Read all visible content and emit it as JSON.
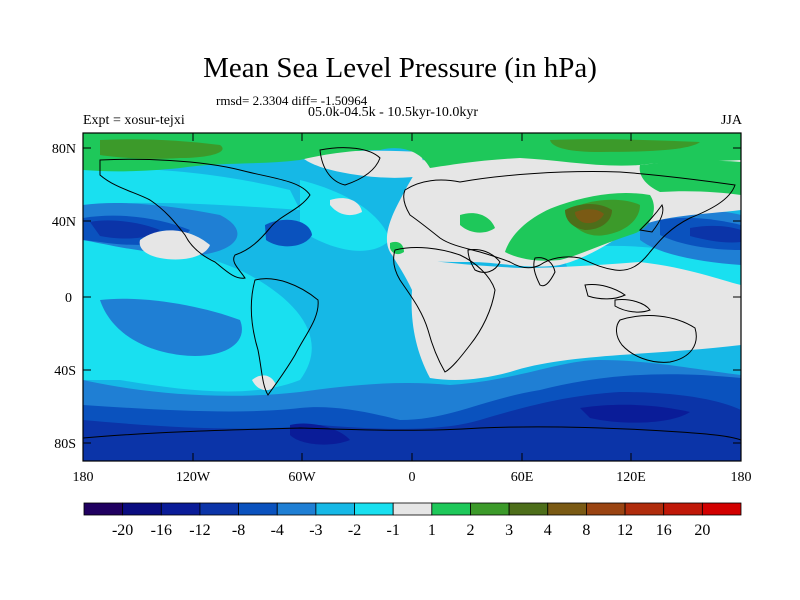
{
  "header": {
    "title": "Mean Sea Level Pressure (in hPa)",
    "stats": "rmsd= 2.3304 diff= -1.50964",
    "period": "05.0k-04.5k - 10.5kyr-10.0kyr",
    "experiment": "Expt = xosur-tejxi",
    "season": "JJA"
  },
  "map": {
    "lat_labels": [
      "80N",
      "40N",
      "0",
      "40S",
      "80S"
    ],
    "lon_labels": [
      "180",
      "120W",
      "60W",
      "0",
      "60E",
      "120E",
      "180"
    ]
  },
  "colorbar": {
    "labels": [
      "-20",
      "-16",
      "-12",
      "-8",
      "-4",
      "-3",
      "-2",
      "-1",
      "1",
      "2",
      "3",
      "4",
      "8",
      "12",
      "16",
      "20"
    ],
    "colors": [
      "#200060",
      "#0a0c80",
      "#0a1c98",
      "#0b34a8",
      "#0a52be",
      "#1f7fd4",
      "#16b8e6",
      "#19e0f0",
      "#e6e6e6",
      "#1ec85a",
      "#3c9a2a",
      "#4d6e1a",
      "#7a5a14",
      "#9a4412",
      "#b02c0c",
      "#c01808",
      "#d20000"
    ]
  },
  "chart_data": {
    "type": "heatmap",
    "title": "Mean Sea Level Pressure (in hPa)",
    "projection": "cylindrical equidistant",
    "variable": "MSLP difference (hPa)",
    "x_range": [
      -180,
      180
    ],
    "y_range": [
      -90,
      90
    ],
    "x_ticks": [
      -180,
      -120,
      -60,
      0,
      60,
      120,
      180
    ],
    "y_ticks": [
      80,
      40,
      0,
      -40,
      -80
    ],
    "contour_levels": [
      -20,
      -16,
      -12,
      -8,
      -4,
      -3,
      -2,
      -1,
      1,
      2,
      3,
      4,
      8,
      12,
      16,
      20
    ],
    "rmsd": 2.3304,
    "diff": -1.50964,
    "season": "JJA"
  }
}
